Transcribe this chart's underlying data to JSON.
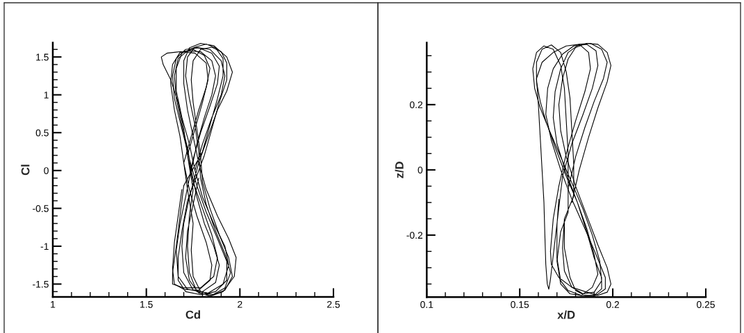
{
  "chart_data": [
    {
      "type": "line",
      "xlabel": "Cd",
      "ylabel": "Cl",
      "xlim": [
        1,
        2.5
      ],
      "ylim": [
        -1.67,
        1.69
      ],
      "grid": false,
      "xticks": [
        1,
        {
          "value": 1.1,
          "label": null
        },
        {
          "value": 1.2,
          "label": null
        },
        {
          "value": 1.3,
          "label": null
        },
        {
          "value": 1.4,
          "label": null
        },
        1.5,
        {
          "value": 1.6,
          "label": null
        },
        {
          "value": 1.7,
          "label": null
        },
        {
          "value": 1.8,
          "label": null
        },
        {
          "value": 1.9,
          "label": null
        },
        2,
        {
          "value": 2.1,
          "label": null
        },
        {
          "value": 2.2,
          "label": null
        },
        {
          "value": 2.3,
          "label": null
        },
        {
          "value": 2.4,
          "label": null
        },
        2.5
      ],
      "yticks": [
        {
          "value": -1.6,
          "label": null
        },
        -1.5,
        {
          "value": -1.4,
          "label": null
        },
        {
          "value": -1.3,
          "label": null
        },
        {
          "value": -1.2,
          "label": null
        },
        {
          "value": -1.1,
          "label": null
        },
        -1,
        {
          "value": -0.9,
          "label": null
        },
        {
          "value": -0.8,
          "label": null
        },
        {
          "value": -0.7,
          "label": null
        },
        {
          "value": -0.6,
          "label": null
        },
        -0.5,
        {
          "value": -0.4,
          "label": null
        },
        {
          "value": -0.3,
          "label": null
        },
        {
          "value": -0.2,
          "label": null
        },
        {
          "value": -0.1,
          "label": null
        },
        0,
        {
          "value": 0.1,
          "label": null
        },
        {
          "value": 0.2,
          "label": null
        },
        {
          "value": 0.3,
          "label": null
        },
        {
          "value": 0.4,
          "label": null
        },
        0.5,
        {
          "value": 0.6,
          "label": null
        },
        {
          "value": 0.7,
          "label": null
        },
        {
          "value": 0.8,
          "label": null
        },
        {
          "value": 0.9,
          "label": null
        },
        1,
        {
          "value": 1.1,
          "label": null
        },
        {
          "value": 1.2,
          "label": null
        },
        {
          "value": 1.3,
          "label": null
        },
        {
          "value": 1.4,
          "label": null
        },
        1.5,
        {
          "value": 1.6,
          "label": null
        }
      ],
      "series": [
        {
          "color": "#000000",
          "x": [
            1.76,
            1.8,
            1.85,
            1.9,
            1.92,
            1.9,
            1.84,
            1.76,
            1.69,
            1.66,
            1.66,
            1.69,
            1.73,
            1.76,
            1.8,
            1.86,
            1.92,
            1.94,
            1.91,
            1.83,
            1.75,
            1.7,
            1.69,
            1.7,
            1.73,
            1.78,
            1.83,
            1.88,
            1.93,
            1.96,
            1.93,
            1.86,
            1.79,
            1.73,
            1.7,
            1.7,
            1.72,
            1.75,
            1.78,
            1.82,
            1.88,
            1.94,
            1.98,
            1.97,
            1.91,
            1.84,
            1.77,
            1.73,
            1.72,
            1.73,
            1.75,
            1.72,
            1.76,
            1.8,
            1.83,
            1.82,
            1.76,
            1.68,
            1.61,
            1.58,
            1.59,
            1.63,
            1.67,
            1.7,
            1.72,
            1.75,
            1.8,
            1.85,
            1.88,
            1.86,
            1.79,
            1.7,
            1.64,
            1.64,
            1.66,
            1.68,
            1.7,
            1.8,
            1.84,
            1.88,
            1.91,
            1.91,
            1.87,
            1.82,
            1.76,
            1.72,
            1.71,
            1.73,
            1.76,
            1.78,
            1.79,
            1.82,
            1.87,
            1.92,
            1.95,
            1.92,
            1.85,
            1.78,
            1.73,
            1.71,
            1.72,
            1.75,
            1.78
          ],
          "values": [
            0,
            0.35,
            0.7,
            1.0,
            1.25,
            1.45,
            1.6,
            1.63,
            1.55,
            1.35,
            1.05,
            0.7,
            0.35,
            0,
            -0.35,
            -0.7,
            -1.0,
            -1.25,
            -1.5,
            -1.62,
            -1.58,
            -1.35,
            -1.0,
            -0.7,
            -0.35,
            0.1,
            0.45,
            0.8,
            1.05,
            1.3,
            1.5,
            1.65,
            1.68,
            1.62,
            1.45,
            1.15,
            0.8,
            0.45,
            0.1,
            -0.25,
            -0.6,
            -0.9,
            -1.15,
            -1.4,
            -1.6,
            -1.66,
            -1.6,
            -1.35,
            -1.0,
            -0.6,
            -0.25,
            0.2,
            0.55,
            0.9,
            1.2,
            1.42,
            1.55,
            1.57,
            1.55,
            1.5,
            1.4,
            1.2,
            0.9,
            0.55,
            0.2,
            -0.15,
            -0.5,
            -0.85,
            -1.15,
            -1.4,
            -1.55,
            -1.55,
            -1.5,
            -1.35,
            -1.0,
            -0.6,
            -0.2,
            0.25,
            0.6,
            0.95,
            1.25,
            1.48,
            1.62,
            1.67,
            1.63,
            1.5,
            1.25,
            0.95,
            0.6,
            0.25,
            -0.1,
            -0.45,
            -0.8,
            -1.1,
            -1.35,
            -1.55,
            -1.65,
            -1.62,
            -1.45,
            -1.15,
            -0.8,
            -0.45,
            -0.1
          ]
        },
        {
          "color": "#000000",
          "x": [
            1.74,
            1.77,
            1.81,
            1.85,
            1.87,
            1.85,
            1.79,
            1.72,
            1.67,
            1.65,
            1.66,
            1.69,
            1.72,
            1.74,
            1.77,
            1.81,
            1.86,
            1.89,
            1.87,
            1.8,
            1.72,
            1.67,
            1.66,
            1.68,
            1.71,
            1.75,
            1.79,
            1.84,
            1.88,
            1.89,
            1.85,
            1.78,
            1.71,
            1.66,
            1.64,
            1.65,
            1.69,
            1.73,
            1.77,
            1.82,
            1.88,
            1.93,
            1.93,
            1.87,
            1.79,
            1.71,
            1.67,
            1.67,
            1.69,
            1.72,
            1.81,
            1.85,
            1.89,
            1.93,
            1.93,
            1.9,
            1.85,
            1.79,
            1.75,
            1.74,
            1.75,
            1.77,
            1.79,
            1.8,
            1.84,
            1.89,
            1.94,
            1.96,
            1.92,
            1.86,
            1.79,
            1.75,
            1.74,
            1.75,
            1.72,
            1.7,
            1.74,
            1.78,
            1.82,
            1.84,
            1.81,
            1.75,
            1.68,
            1.64,
            1.63,
            1.65,
            1.68,
            1.7,
            1.73,
            1.77,
            1.82,
            1.85,
            1.84,
            1.78,
            1.7,
            1.65,
            1.64,
            1.65,
            1.67,
            1.69
          ],
          "values": [
            0,
            0.35,
            0.7,
            1.0,
            1.25,
            1.45,
            1.57,
            1.58,
            1.48,
            1.25,
            0.95,
            0.6,
            0.3,
            0,
            -0.35,
            -0.7,
            -1.0,
            -1.25,
            -1.48,
            -1.6,
            -1.57,
            -1.4,
            -1.05,
            -0.7,
            -0.35,
            0.15,
            0.5,
            0.85,
            1.15,
            1.38,
            1.55,
            1.62,
            1.6,
            1.48,
            1.25,
            0.95,
            0.55,
            0.15,
            -0.2,
            -0.55,
            -0.9,
            -1.2,
            -1.45,
            -1.6,
            -1.64,
            -1.6,
            -1.45,
            -1.15,
            -0.8,
            -0.4,
            0.2,
            0.55,
            0.9,
            1.2,
            1.42,
            1.57,
            1.63,
            1.6,
            1.45,
            1.2,
            0.9,
            0.55,
            0.2,
            -0.15,
            -0.5,
            -0.85,
            -1.15,
            -1.4,
            -1.58,
            -1.64,
            -1.6,
            -1.4,
            -1.05,
            -0.7,
            -0.25,
            0.1,
            0.45,
            0.8,
            1.1,
            1.35,
            1.52,
            1.6,
            1.56,
            1.4,
            1.15,
            0.8,
            0.45,
            0.1,
            -0.25,
            -0.6,
            -0.95,
            -1.25,
            -1.45,
            -1.58,
            -1.57,
            -1.5,
            -1.3,
            -0.95,
            -0.6,
            -0.25
          ]
        }
      ]
    },
    {
      "type": "line",
      "xlabel": "x/D",
      "ylabel": "z/D",
      "xlim": [
        0.1,
        0.25
      ],
      "ylim": [
        -0.39,
        0.39
      ],
      "grid": false,
      "xticks": [
        0.1,
        {
          "value": 0.11,
          "label": null
        },
        {
          "value": 0.12,
          "label": null
        },
        {
          "value": 0.13,
          "label": null
        },
        {
          "value": 0.14,
          "label": null
        },
        0.15,
        {
          "value": 0.16,
          "label": null
        },
        {
          "value": 0.17,
          "label": null
        },
        {
          "value": 0.18,
          "label": null
        },
        {
          "value": 0.19,
          "label": null
        },
        0.2,
        {
          "value": 0.21,
          "label": null
        },
        {
          "value": 0.22,
          "label": null
        },
        {
          "value": 0.23,
          "label": null
        },
        {
          "value": 0.24,
          "label": null
        },
        0.25
      ],
      "yticks": [
        {
          "value": -0.35,
          "label": null
        },
        {
          "value": -0.3,
          "label": null
        },
        {
          "value": -0.25,
          "label": null
        },
        -0.2,
        {
          "value": -0.15,
          "label": null
        },
        {
          "value": -0.1,
          "label": null
        },
        {
          "value": -0.05,
          "label": null
        },
        0,
        {
          "value": 0.05,
          "label": null
        },
        {
          "value": 0.1,
          "label": null
        },
        {
          "value": 0.15,
          "label": null
        },
        0.2,
        {
          "value": 0.25,
          "label": null
        },
        {
          "value": 0.3,
          "label": null
        },
        {
          "value": 0.35,
          "label": null
        }
      ],
      "series": [
        {
          "color": "#000000",
          "x": [
            0.176,
            0.176,
            0.175,
            0.174,
            0.172,
            0.168,
            0.163,
            0.159,
            0.157,
            0.158,
            0.161,
            0.166,
            0.172,
            0.178,
            0.184,
            0.189,
            0.193,
            0.194,
            0.19,
            0.184,
            0.178,
            0.174,
            0.173,
            0.174,
            0.179,
            0.179,
            0.178,
            0.177,
            0.175,
            0.172,
            0.167,
            0.162,
            0.159,
            0.159,
            0.161,
            0.164,
            0.169,
            0.175,
            0.181,
            0.186,
            0.19,
            0.192,
            0.189,
            0.183,
            0.177,
            0.172,
            0.17,
            0.172,
            0.176,
            0.176,
            0.18,
            0.185,
            0.19,
            0.195,
            0.197,
            0.194,
            0.188,
            0.182,
            0.176,
            0.172,
            0.169,
            0.168,
            0.17,
            0.175,
            0.181,
            0.186,
            0.19,
            0.194,
            0.194,
            0.19,
            0.185,
            0.18,
            0.177,
            0.174,
            0.174
          ],
          "values": [
            -0.05,
            0.05,
            0.15,
            0.25,
            0.32,
            0.37,
            0.38,
            0.36,
            0.31,
            0.25,
            0.19,
            0.12,
            0.04,
            -0.04,
            -0.12,
            -0.2,
            -0.28,
            -0.34,
            -0.375,
            -0.38,
            -0.36,
            -0.31,
            -0.24,
            -0.15,
            -0.08,
            0.02,
            0.12,
            0.22,
            0.3,
            0.36,
            0.383,
            0.37,
            0.33,
            0.27,
            0.21,
            0.15,
            0.07,
            -0.02,
            -0.1,
            -0.18,
            -0.26,
            -0.32,
            -0.36,
            -0.385,
            -0.38,
            -0.35,
            -0.28,
            -0.19,
            -0.13,
            -0.06,
            0.04,
            0.13,
            0.21,
            0.28,
            0.33,
            0.37,
            0.388,
            0.385,
            0.36,
            0.31,
            0.24,
            0.16,
            0.08,
            -0.01,
            -0.1,
            -0.19,
            -0.27,
            -0.33,
            -0.365,
            -0.385,
            -0.385,
            -0.37,
            -0.33,
            -0.24,
            -0.15
          ]
        },
        {
          "color": "#000000",
          "x": [
            0.178,
            0.182,
            0.187,
            0.192,
            0.197,
            0.199,
            0.197,
            0.192,
            0.186,
            0.18,
            0.176,
            0.173,
            0.171,
            0.172,
            0.175,
            0.18,
            0.186,
            0.192,
            0.197,
            0.199,
            0.197,
            0.192,
            0.186,
            0.178,
            0.171,
            0.167,
            0.1665,
            0.168,
            0.171,
            0.175,
            0.18,
            0.185,
            0.188,
            0.187,
            0.182,
            0.175,
            0.168,
            0.162,
            0.159,
            0.16,
            0.161,
            0.162,
            0.163,
            0.1635,
            0.164,
            0.1648,
            0.1656,
            0.1664,
            0.173,
            0.178,
            0.184,
            0.189,
            0.192,
            0.191,
            0.186,
            0.179,
            0.173,
            0.168,
            0.165,
            0.164,
            0.167,
            0.172,
            0.178,
            0.185,
            0.191,
            0.196,
            0.196,
            0.191,
            0.183,
            0.176,
            0.172,
            0.17,
            0.17,
            0.171
          ],
          "values": [
            -0.1,
            0.0,
            0.1,
            0.19,
            0.27,
            0.32,
            0.36,
            0.385,
            0.388,
            0.375,
            0.34,
            0.28,
            0.2,
            0.12,
            0.04,
            -0.05,
            -0.14,
            -0.23,
            -0.3,
            -0.35,
            -0.375,
            -0.385,
            -0.375,
            -0.36,
            -0.33,
            -0.29,
            -0.25,
            -0.15,
            -0.05,
            0.05,
            0.15,
            0.24,
            0.31,
            0.36,
            0.385,
            0.38,
            0.36,
            0.33,
            0.28,
            0.2,
            0.1,
            0.0,
            -0.1,
            -0.2,
            -0.29,
            -0.35,
            -0.366,
            -0.34,
            -0.02,
            0.08,
            0.17,
            0.25,
            0.32,
            0.365,
            0.385,
            0.38,
            0.355,
            0.31,
            0.25,
            0.17,
            0.09,
            0.0,
            -0.09,
            -0.18,
            -0.26,
            -0.33,
            -0.365,
            -0.385,
            -0.385,
            -0.37,
            -0.34,
            -0.27,
            -0.17,
            -0.09
          ]
        }
      ]
    }
  ]
}
